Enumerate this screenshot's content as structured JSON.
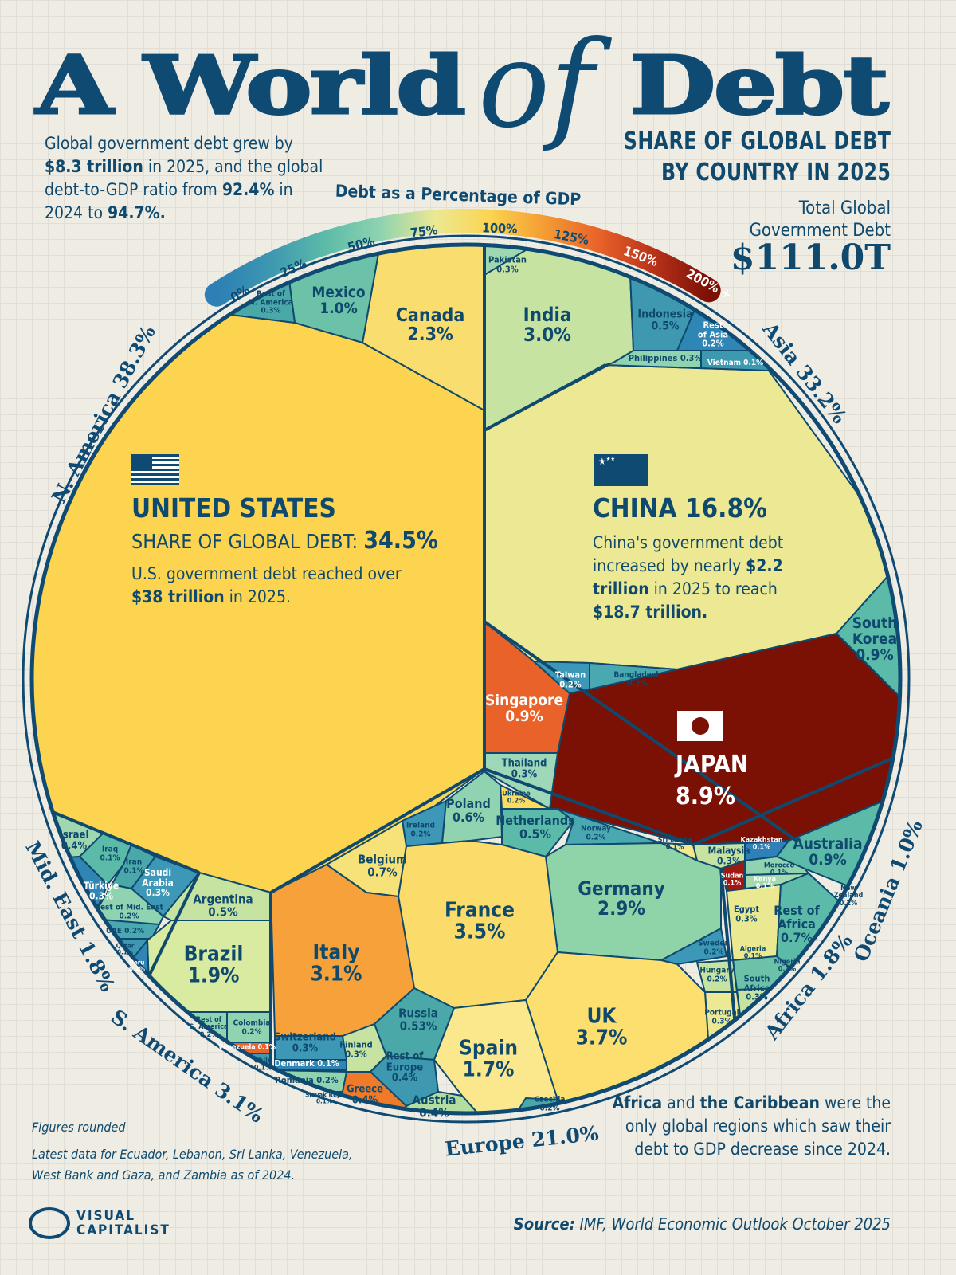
{
  "header": {
    "title_part1": "A World",
    "title_of": "of",
    "title_part2": "Debt",
    "intro_1": "Global government debt grew by ",
    "intro_b1": "$8.3 trillion",
    "intro_2": " in 2025, and the global debt-to-GDP ratio from ",
    "intro_b2": "92.4%",
    "intro_3": " in 2024 to ",
    "intro_b3": "94.7%.",
    "subtitle_1": "SHARE OF GLOBAL DEBT",
    "subtitle_2": "BY COUNTRY IN 2025",
    "total_label_1": "Total Global",
    "total_label_2": "Government Debt",
    "total_value": "$111.0T"
  },
  "legend": {
    "title": "Debt as a Percentage of GDP",
    "ticks": [
      "0%",
      "25%",
      "50%",
      "75%",
      "100%",
      "125%",
      "150%",
      "200% +"
    ],
    "colors": [
      "#2d7fb5",
      "#3d98b0",
      "#5cbba8",
      "#8fd3b0",
      "#ece893",
      "#fcd450",
      "#f39c33",
      "#e8622a",
      "#b8321a",
      "#7b1005"
    ]
  },
  "regions": [
    {
      "name": "N. America",
      "share": "38.3%"
    },
    {
      "name": "Asia",
      "share": "33.2%"
    },
    {
      "name": "Oceania",
      "share": "1.0%"
    },
    {
      "name": "Africa",
      "share": "1.8%"
    },
    {
      "name": "Europe",
      "share": "21.0%"
    },
    {
      "name": "S. America",
      "share": "3.1%"
    },
    {
      "name": "Mid. East",
      "share": "1.8%"
    }
  ],
  "featured": {
    "us": {
      "name": "UNITED STATES",
      "share_label": "SHARE OF GLOBAL DEBT: ",
      "share": "34.5%",
      "text_1": "U.S. government debt reached over ",
      "text_b": "$38 trillion",
      "text_2": " in 2025.",
      "color": "#fcd450"
    },
    "china": {
      "name": "CHINA",
      "share": "16.8%",
      "text_1": "China's government debt increased by nearly ",
      "text_b1": "$2.2 trillion",
      "text_2": " in 2025 to reach ",
      "text_b2": "$18.7 trillion.",
      "color": "#ece893"
    },
    "japan": {
      "name": "JAPAN",
      "share": "8.9%",
      "color": "#7b1005"
    }
  },
  "chart_data": {
    "type": "voronoi-treemap",
    "title": "A World of Debt",
    "subtitle": "Share of Global Debt by Country in 2025",
    "total": "$111.0T",
    "color_scale": "Debt as a Percentage of GDP",
    "cells": [
      {
        "name": "Canada",
        "value": "2.3%",
        "region": "N. America",
        "color": "#f9dd6e"
      },
      {
        "name": "Mexico",
        "value": "1.0%",
        "region": "N. America",
        "color": "#6cc2a8"
      },
      {
        "name": "Rest of\nN. America",
        "value": "0.3%",
        "region": "N. America",
        "color": "#4aa8a8"
      },
      {
        "name": "Pakistan",
        "value": "0.3%",
        "region": "Asia",
        "color": "#9fd8b0"
      },
      {
        "name": "India",
        "value": "3.0%",
        "region": "Asia",
        "color": "#c6e3a1"
      },
      {
        "name": "Indonesia",
        "value": "0.5%",
        "region": "Asia",
        "color": "#3d98b0"
      },
      {
        "name": "Rest\nof Asia",
        "value": "0.2%",
        "region": "Asia",
        "color": "#2f86b4"
      },
      {
        "name": "Philippines",
        "value": "0.3%",
        "region": "Asia",
        "color": "#8fd3b0"
      },
      {
        "name": "Vietnam",
        "value": "0.1%",
        "region": "Asia",
        "color": "#3d98b0"
      },
      {
        "name": "South\nKorea",
        "value": "0.9%",
        "region": "Asia",
        "color": "#5cbba8"
      },
      {
        "name": "Singapore",
        "value": "0.9%",
        "region": "Asia",
        "color": "#e8622a"
      },
      {
        "name": "Taiwan",
        "value": "0.2%",
        "region": "Asia",
        "color": "#3d98b8"
      },
      {
        "name": "Bangladesh",
        "value": "0.2%",
        "region": "Asia",
        "color": "#4aa8b0"
      },
      {
        "name": "Thailand",
        "value": "0.3%",
        "region": "Asia",
        "color": "#9fd8b8"
      },
      {
        "name": "Sri Lanka",
        "value": "0.1%",
        "region": "Asia",
        "color": "#f3e98a"
      },
      {
        "name": "Malaysia",
        "value": "0.3%",
        "region": "Asia",
        "color": "#c6e3a1"
      },
      {
        "name": "Kazakhstan",
        "value": "0.1%",
        "region": "Asia",
        "color": "#2f7fb8"
      },
      {
        "name": "Australia",
        "value": "0.9%",
        "region": "Oceania",
        "color": "#5cbba8"
      },
      {
        "name": "New\nZealand",
        "value": "0.2%",
        "region": "Oceania",
        "color": "#4aa8a8"
      },
      {
        "name": "Morocco",
        "value": "0.1%",
        "region": "Africa",
        "color": "#8fd3b0"
      },
      {
        "name": "Sudan",
        "value": "0.1%",
        "region": "Africa",
        "color": "#a01812"
      },
      {
        "name": "Kenya",
        "value": "0.1%",
        "region": "Africa",
        "color": "#a4dab0"
      },
      {
        "name": "Egypt",
        "value": "0.3%",
        "region": "Africa",
        "color": "#eae890"
      },
      {
        "name": "Rest of\nAfrica",
        "value": "0.7%",
        "region": "Africa",
        "color": "#5cbba8"
      },
      {
        "name": "Algeria",
        "value": "0.1%",
        "region": "Africa",
        "color": "#6cc2a8"
      },
      {
        "name": "Nigeria",
        "value": "0.1%",
        "region": "Africa",
        "color": "#3d98b8"
      },
      {
        "name": "South\nAfrica",
        "value": "0.3%",
        "region": "Africa",
        "color": "#c6e3a1"
      },
      {
        "name": "Ireland",
        "value": "0.2%",
        "region": "Europe",
        "color": "#3d98b8"
      },
      {
        "name": "Poland",
        "value": "0.6%",
        "region": "Europe",
        "color": "#8fd3b0"
      },
      {
        "name": "Ukraine",
        "value": "0.2%",
        "region": "Europe",
        "color": "#fcdb60"
      },
      {
        "name": "Netherlands",
        "value": "0.5%",
        "region": "Europe",
        "color": "#5cbba8"
      },
      {
        "name": "Norway",
        "value": "0.2%",
        "region": "Europe",
        "color": "#4aa8b0"
      },
      {
        "name": "Germany",
        "value": "2.9%",
        "region": "Europe",
        "color": "#8fd3a8"
      },
      {
        "name": "Sweden",
        "value": "0.2%",
        "region": "Europe",
        "color": "#3d98b8"
      },
      {
        "name": "Hungary",
        "value": "0.2%",
        "region": "Europe",
        "color": "#c6e3a1"
      },
      {
        "name": "Portugal",
        "value": "0.3%",
        "region": "Europe",
        "color": "#ece893"
      },
      {
        "name": "Belgium",
        "value": "0.7%",
        "region": "Europe",
        "color": "#f7e27a"
      },
      {
        "name": "France",
        "value": "3.5%",
        "region": "Europe",
        "color": "#fbdc6a"
      },
      {
        "name": "UK",
        "value": "3.7%",
        "region": "Europe",
        "color": "#fcdf6f"
      },
      {
        "name": "Italy",
        "value": "3.1%",
        "region": "Europe",
        "color": "#f7a13a"
      },
      {
        "name": "Russia",
        "value": "0.53%",
        "region": "Europe",
        "color": "#4aa8a8"
      },
      {
        "name": "Spain",
        "value": "1.7%",
        "region": "Europe",
        "color": "#fbe88d"
      },
      {
        "name": "Czechia",
        "value": "0.2%",
        "region": "Europe",
        "color": "#4aa8a8"
      },
      {
        "name": "Finland",
        "value": "0.3%",
        "region": "Europe",
        "color": "#c6e3a1"
      },
      {
        "name": "Rest of\nEurope",
        "value": "0.4%",
        "region": "Europe",
        "color": "#3d98b0"
      },
      {
        "name": "Greece",
        "value": "0.4%",
        "region": "Europe",
        "color": "#f07a28"
      },
      {
        "name": "Austria",
        "value": "0.4%",
        "region": "Europe",
        "color": "#b4dea0"
      },
      {
        "name": "Switzerland",
        "value": "0.3%",
        "region": "Europe",
        "color": "#3d98b8"
      },
      {
        "name": "Denmark",
        "value": "0.1%",
        "region": "Europe",
        "color": "#2f86b4"
      },
      {
        "name": "Romania",
        "value": "0.2%",
        "region": "Europe",
        "color": "#8fd3b0"
      },
      {
        "name": "Slovak Rep.",
        "value": "0.1%",
        "region": "Europe",
        "color": "#8fd3b0"
      },
      {
        "name": "Israel",
        "value": "0.4%",
        "region": "Mid. East",
        "color": "#9fd8b0"
      },
      {
        "name": "Iraq",
        "value": "0.1%",
        "region": "Mid. East",
        "color": "#5cbba8"
      },
      {
        "name": "Iran",
        "value": "0.1%",
        "region": "Mid. East",
        "color": "#4aa8a8"
      },
      {
        "name": "Türkiye",
        "value": "0.3%",
        "region": "Mid. East",
        "color": "#2f86b4"
      },
      {
        "name": "Saudi\nArabia",
        "value": "0.3%",
        "region": "Mid. East",
        "color": "#3d98b8"
      },
      {
        "name": "Rest of Mid. East",
        "value": "0.2%",
        "region": "Mid. East",
        "color": "#8fd3b0"
      },
      {
        "name": "UAE",
        "value": "0.2%",
        "region": "Mid. East",
        "color": "#4aa8b0"
      },
      {
        "name": "Qatar",
        "value": "0.1%",
        "region": "Mid. East",
        "color": "#3d98b0"
      },
      {
        "name": "Argentina",
        "value": "0.5%",
        "region": "S. America",
        "color": "#c6e3a1"
      },
      {
        "name": "Brazil",
        "value": "1.9%",
        "region": "S. America",
        "color": "#d9eba0"
      },
      {
        "name": "Peru",
        "value": "0.1%",
        "region": "S. America",
        "color": "#2f86b4"
      },
      {
        "name": "Rest of\nS. America",
        "value": "0.2%",
        "region": "S. America",
        "color": "#8fd3b0"
      },
      {
        "name": "Colombia",
        "value": "0.2%",
        "region": "S. America",
        "color": "#8fd3b0"
      },
      {
        "name": "Venezuela",
        "value": "0.1%",
        "region": "S. America",
        "color": "#e8622a"
      },
      {
        "name": "Chile",
        "value": "0.1%",
        "region": "S. America",
        "color": "#3d98b0"
      }
    ]
  },
  "footer": {
    "note_1": "Figures rounded",
    "note_2": "Latest data for Ecuador, Lebanon, Sri Lanka, Venezuela, West Bank and Gaza, and Zambia as of 2024.",
    "callout_b1": "Africa",
    "callout_1": " and ",
    "callout_b2": "the Caribbean",
    "callout_2": " were the only global regions which saw their debt to GDP decrease since 2024.",
    "source_label": "Source:",
    "source": " IMF, World Economic Outlook October 2025",
    "brand_1": "VISUAL",
    "brand_2": "CAPITALIST"
  }
}
